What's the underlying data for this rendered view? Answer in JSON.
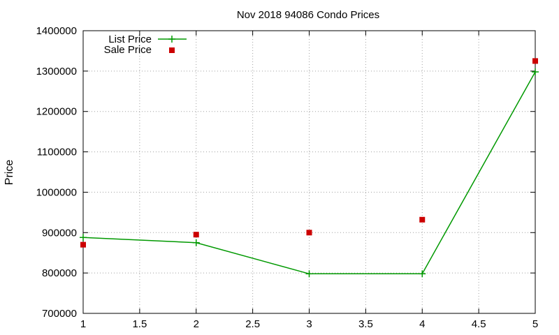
{
  "chart_data": {
    "type": "line",
    "title": "Nov 2018 94086 Condo Prices",
    "xlabel": "",
    "ylabel": "Price",
    "xlim": [
      1,
      5
    ],
    "ylim": [
      700000,
      1400000
    ],
    "x_ticks": [
      1,
      1.5,
      2,
      2.5,
      3,
      3.5,
      4,
      4.5,
      5
    ],
    "x_tick_labels": [
      "1",
      "1.5",
      "2",
      "2.5",
      "3",
      "3.5",
      "4",
      "4.5",
      "5"
    ],
    "y_ticks": [
      700000,
      800000,
      900000,
      1000000,
      1100000,
      1200000,
      1300000,
      1400000
    ],
    "y_tick_labels": [
      "700000",
      "800000",
      "900000",
      "1000000",
      "1100000",
      "1200000",
      "1300000",
      "1400000"
    ],
    "grid": true,
    "legend_position": "top-left",
    "series": [
      {
        "name": "List Price",
        "style": "line-with-plus-markers",
        "color": "#009900",
        "x": [
          1,
          2,
          3,
          4,
          5
        ],
        "y": [
          888000,
          875000,
          798000,
          798000,
          1298000
        ]
      },
      {
        "name": "Sale Price",
        "style": "square-markers",
        "color": "#cc0000",
        "x": [
          1,
          2,
          3,
          4,
          5
        ],
        "y": [
          870000,
          895000,
          900000,
          932000,
          1325000
        ]
      }
    ]
  }
}
